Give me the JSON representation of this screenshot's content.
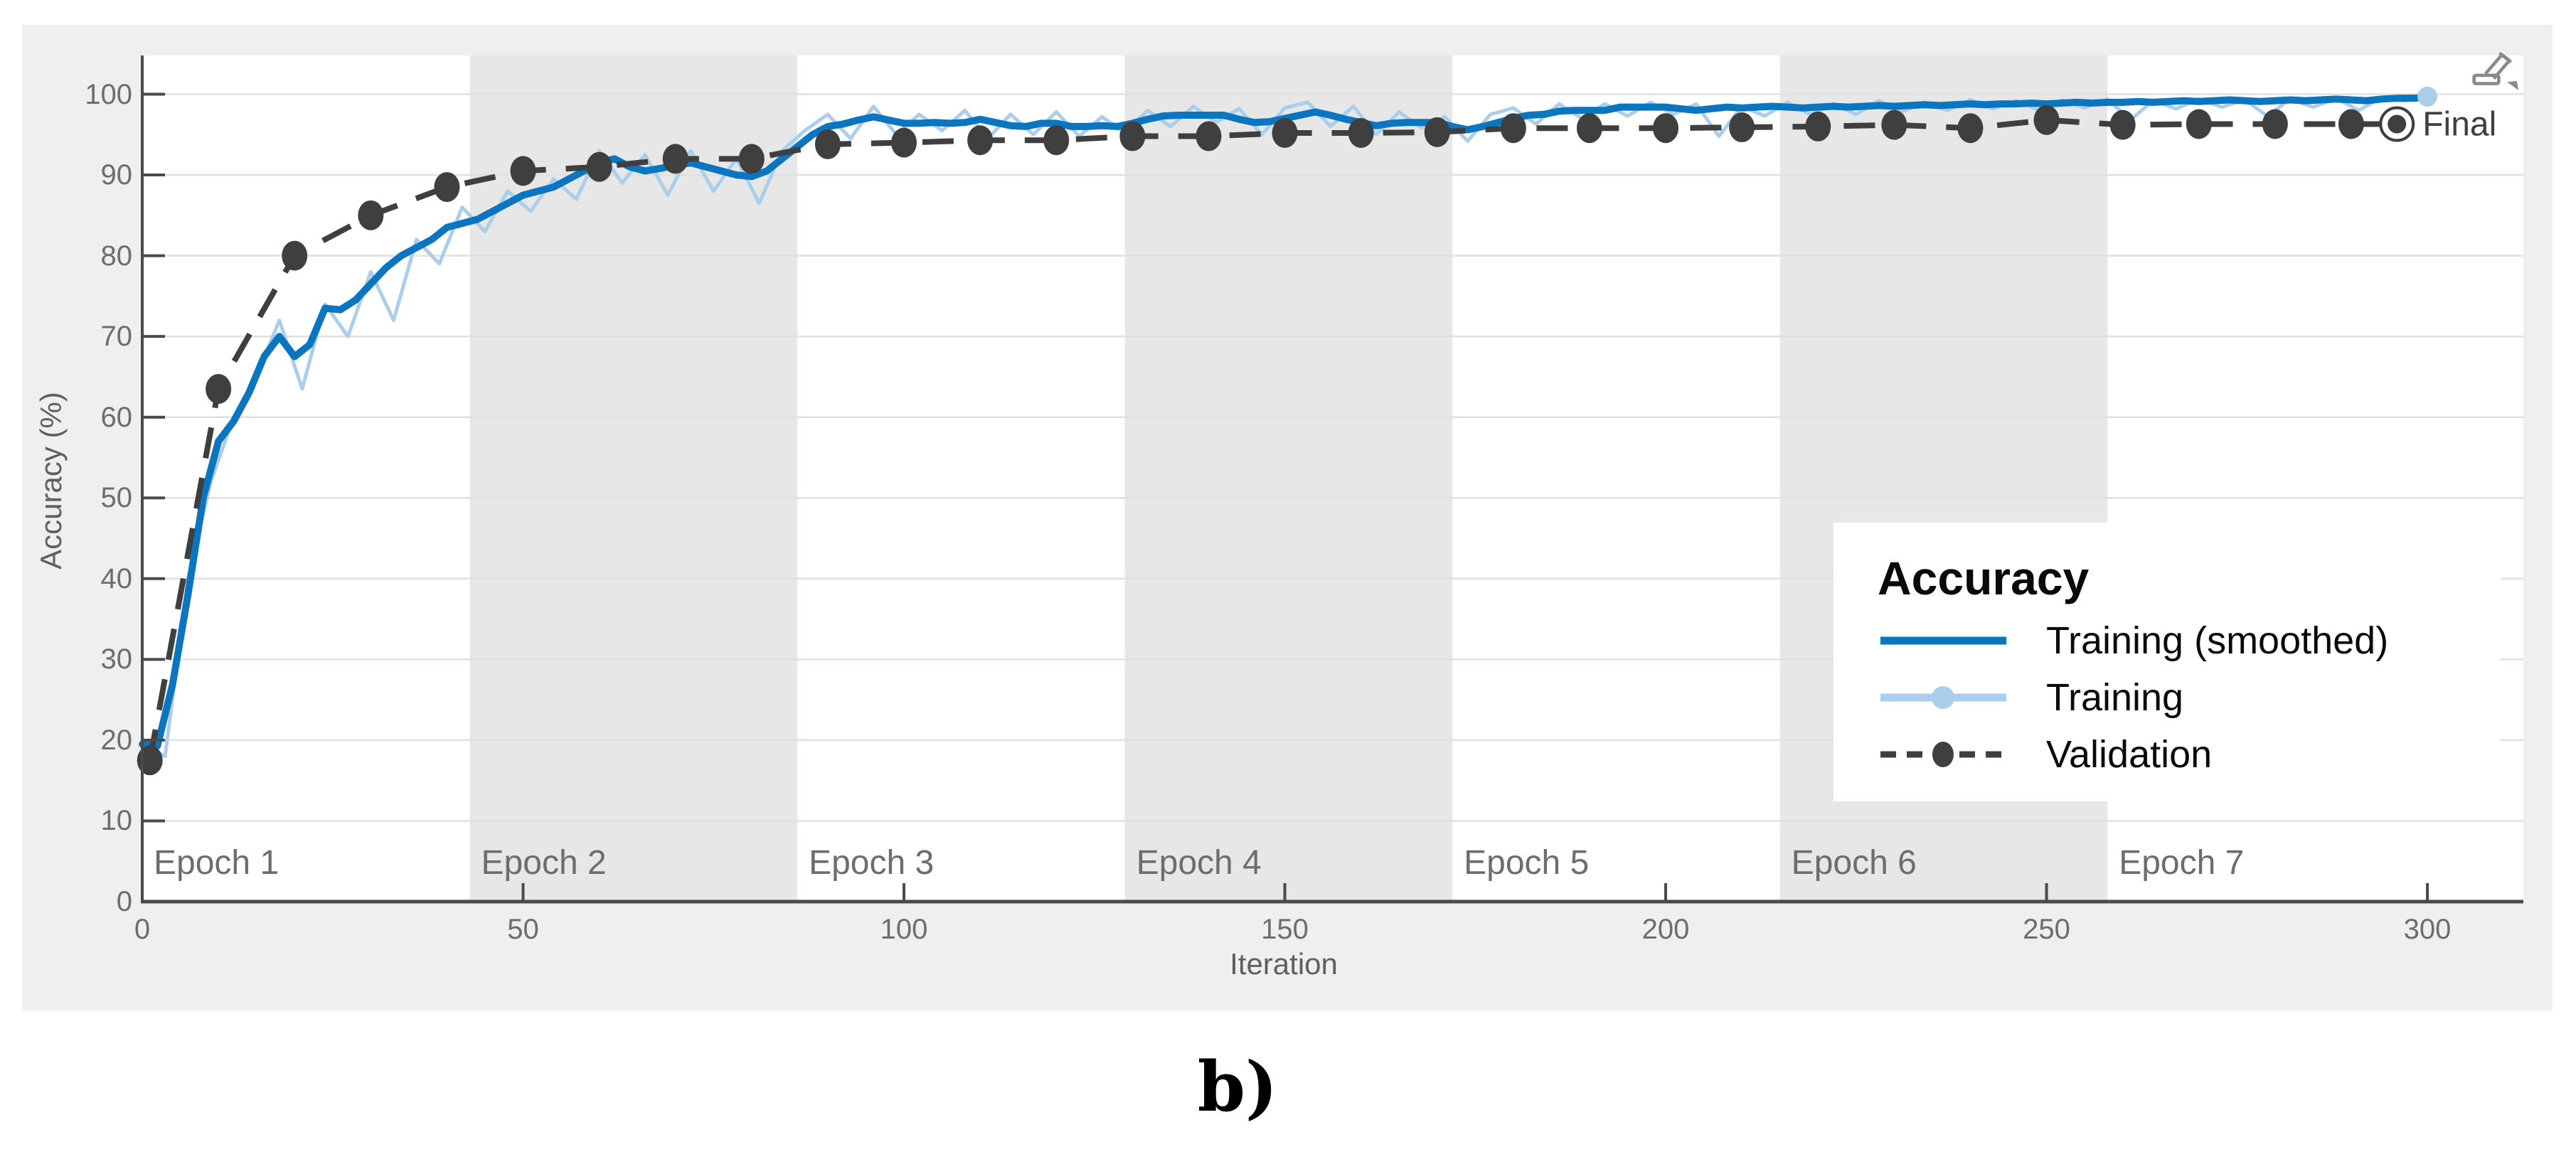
{
  "figure": {
    "caption": "b)",
    "toolbar_icon": "export-plot-icon"
  },
  "colors": {
    "figure_background": "#efefef",
    "plot_background": "#ffffff",
    "epoch_band": "#e7e7e7",
    "gridline": "#e0e0e0",
    "axis": "#4a4a4a",
    "tick_text": "#6d6d6d",
    "axis_title_text": "#5f5f5f",
    "training_smoothed": "#0b76bf",
    "training_raw": "#abceea",
    "validation": "#3f3f3f"
  },
  "chart_data": {
    "type": "line",
    "title": "",
    "xlabel": "Iteration",
    "ylabel": "Accuracy (%)",
    "xlim": [
      0,
      312.6
    ],
    "ylim": [
      0,
      104.8
    ],
    "x_ticks": [
      0,
      50,
      100,
      150,
      200,
      250,
      300
    ],
    "y_ticks": [
      0,
      10,
      20,
      30,
      40,
      50,
      60,
      70,
      80,
      90,
      100
    ],
    "grid": "horizontal",
    "legend": {
      "title": "Accuracy",
      "position": "bottom-right",
      "entries": [
        "Training (smoothed)",
        "Training",
        "Validation"
      ]
    },
    "epochs": {
      "iterations_per_epoch": 43,
      "labels": [
        "Epoch 1",
        "Epoch 2",
        "Epoch 3",
        "Epoch 4",
        "Epoch 5",
        "Epoch 6",
        "Epoch 7"
      ],
      "shaded": [
        false,
        true,
        false,
        true,
        false,
        true,
        false
      ]
    },
    "final_annotation": {
      "label": "Final",
      "x": 296,
      "y": 96.3
    },
    "series": [
      {
        "name": "Training (smoothed)",
        "color": "#0b76bf",
        "style": "solid",
        "width": 10,
        "x": [
          0,
          2,
          4,
          6,
          8,
          10,
          12,
          14,
          16,
          18,
          20,
          22,
          24,
          26,
          28,
          30,
          32,
          34,
          36,
          38,
          40,
          42,
          44,
          46,
          48,
          50,
          52,
          54,
          56,
          58,
          60,
          62,
          64,
          66,
          68,
          70,
          72,
          74,
          76,
          78,
          80,
          82,
          84,
          86,
          88,
          90,
          92,
          94,
          96,
          98,
          100,
          102,
          104,
          106,
          108,
          110,
          112,
          114,
          116,
          118,
          120,
          122,
          124,
          126,
          128,
          130,
          132,
          134,
          136,
          138,
          140,
          142,
          144,
          146,
          148,
          150,
          152,
          154,
          156,
          158,
          160,
          162,
          164,
          166,
          168,
          170,
          172,
          174,
          176,
          178,
          180,
          182,
          184,
          186,
          188,
          190,
          192,
          194,
          196,
          198,
          200,
          202,
          204,
          206,
          208,
          210,
          212,
          214,
          216,
          218,
          220,
          222,
          224,
          226,
          228,
          230,
          232,
          234,
          236,
          238,
          240,
          242,
          244,
          246,
          248,
          250,
          252,
          254,
          256,
          258,
          260,
          262,
          264,
          266,
          268,
          270,
          272,
          274,
          276,
          278,
          280,
          282,
          284,
          286,
          288,
          290,
          292,
          294,
          296,
          298,
          300
        ],
        "y": [
          19.5,
          19.3,
          27,
          38,
          50,
          57,
          59.5,
          63,
          67.5,
          70,
          67.5,
          69,
          73.5,
          73.3,
          74.5,
          76.5,
          78.5,
          80,
          81,
          82,
          83.5,
          84,
          84.5,
          85.5,
          86.5,
          87.5,
          88,
          88.5,
          89.5,
          90.5,
          91.5,
          92,
          91,
          90.5,
          90.8,
          91.2,
          91.5,
          91,
          90.5,
          90,
          89.8,
          90.5,
          92,
          93.5,
          95,
          96,
          96.3,
          96.8,
          97.2,
          96.8,
          96.4,
          96.4,
          96.5,
          96.4,
          96.5,
          96.9,
          96.5,
          96.1,
          96,
          96.4,
          96.4,
          96,
          96,
          96.1,
          96,
          96.4,
          96.9,
          97.3,
          97.4,
          97.4,
          97.4,
          97.4,
          96.9,
          96.5,
          96.6,
          97,
          97.4,
          97.8,
          97.4,
          96.9,
          96.5,
          96.1,
          96.4,
          96.5,
          96.5,
          96.5,
          96,
          95.6,
          96,
          96.5,
          97,
          97.4,
          97.5,
          97.9,
          98,
          98,
          98,
          98.4,
          98.4,
          98.4,
          98.4,
          98.2,
          98,
          98.2,
          98.4,
          98.3,
          98.4,
          98.5,
          98.4,
          98.3,
          98.4,
          98.5,
          98.4,
          98.5,
          98.6,
          98.5,
          98.6,
          98.7,
          98.6,
          98.7,
          98.8,
          98.7,
          98.8,
          98.8,
          98.9,
          98.8,
          98.9,
          99,
          98.9,
          99,
          99,
          99.1,
          99,
          99.1,
          99.2,
          99.1,
          99.2,
          99.3,
          99.2,
          99.1,
          99.2,
          99.3,
          99.2,
          99.3,
          99.4,
          99.3,
          99.2,
          99.4,
          99.5,
          99.5,
          99.6
        ]
      },
      {
        "name": "Training",
        "color": "#abceea",
        "style": "solid",
        "width": 5,
        "marker_end": true,
        "x": [
          0,
          3,
          6,
          9,
          12,
          15,
          18,
          21,
          24,
          27,
          30,
          33,
          36,
          39,
          42,
          45,
          48,
          51,
          54,
          57,
          60,
          63,
          66,
          69,
          72,
          75,
          78,
          81,
          84,
          87,
          90,
          93,
          96,
          99,
          102,
          105,
          108,
          111,
          114,
          117,
          120,
          123,
          126,
          129,
          132,
          135,
          138,
          141,
          144,
          147,
          150,
          153,
          156,
          159,
          162,
          165,
          168,
          171,
          174,
          177,
          180,
          183,
          186,
          189,
          192,
          195,
          198,
          201,
          204,
          207,
          210,
          213,
          216,
          219,
          222,
          225,
          228,
          231,
          234,
          237,
          240,
          243,
          246,
          249,
          252,
          255,
          258,
          261,
          264,
          267,
          270,
          273,
          276,
          279,
          282,
          285,
          288,
          291,
          294,
          297,
          300
        ],
        "y": [
          19.5,
          18,
          40,
          52,
          60,
          65,
          72,
          63.5,
          74,
          70,
          78,
          72,
          82,
          79,
          86,
          83,
          88,
          85.5,
          89.5,
          87,
          93,
          89,
          92.5,
          87.5,
          93,
          88,
          92,
          86.5,
          93,
          95.5,
          97.5,
          94.5,
          98.5,
          95,
          97.5,
          95.5,
          98,
          94.5,
          97.5,
          95,
          97.8,
          94.8,
          97.2,
          95.2,
          98,
          96,
          98.5,
          96.5,
          98.2,
          95,
          98.3,
          99,
          96,
          98.5,
          95,
          97.8,
          95.8,
          97.2,
          94.2,
          97.5,
          98.3,
          96.3,
          98.8,
          97,
          98.8,
          97.3,
          99,
          97.5,
          98.8,
          94.8,
          98.5,
          97.3,
          99,
          97.5,
          98.8,
          97.5,
          99.2,
          97.8,
          99,
          98,
          99.3,
          98.2,
          99.2,
          98,
          99.3,
          98.3,
          99.4,
          96.8,
          99.2,
          98.2,
          99.4,
          98.4,
          99.3,
          97.3,
          99.4,
          98.4,
          99.5,
          98,
          99.6,
          99.2,
          99.7
        ]
      },
      {
        "name": "Validation",
        "color": "#3f3f3f",
        "style": "dashed",
        "width": 8,
        "marker": "circle",
        "x": [
          1,
          10,
          20,
          30,
          40,
          50,
          60,
          70,
          80,
          90,
          100,
          110,
          120,
          130,
          140,
          150,
          160,
          170,
          180,
          190,
          200,
          210,
          220,
          230,
          240,
          250,
          260,
          270,
          280,
          290,
          296
        ],
        "y": [
          17.5,
          63.5,
          80,
          85,
          88.5,
          90.5,
          91,
          92,
          92,
          93.8,
          94,
          94.3,
          94.3,
          94.8,
          94.8,
          95.2,
          95.2,
          95.3,
          95.8,
          95.8,
          95.8,
          95.9,
          96,
          96.2,
          95.8,
          96.8,
          96.2,
          96.3,
          96.3,
          96.3,
          96.3
        ]
      }
    ]
  }
}
